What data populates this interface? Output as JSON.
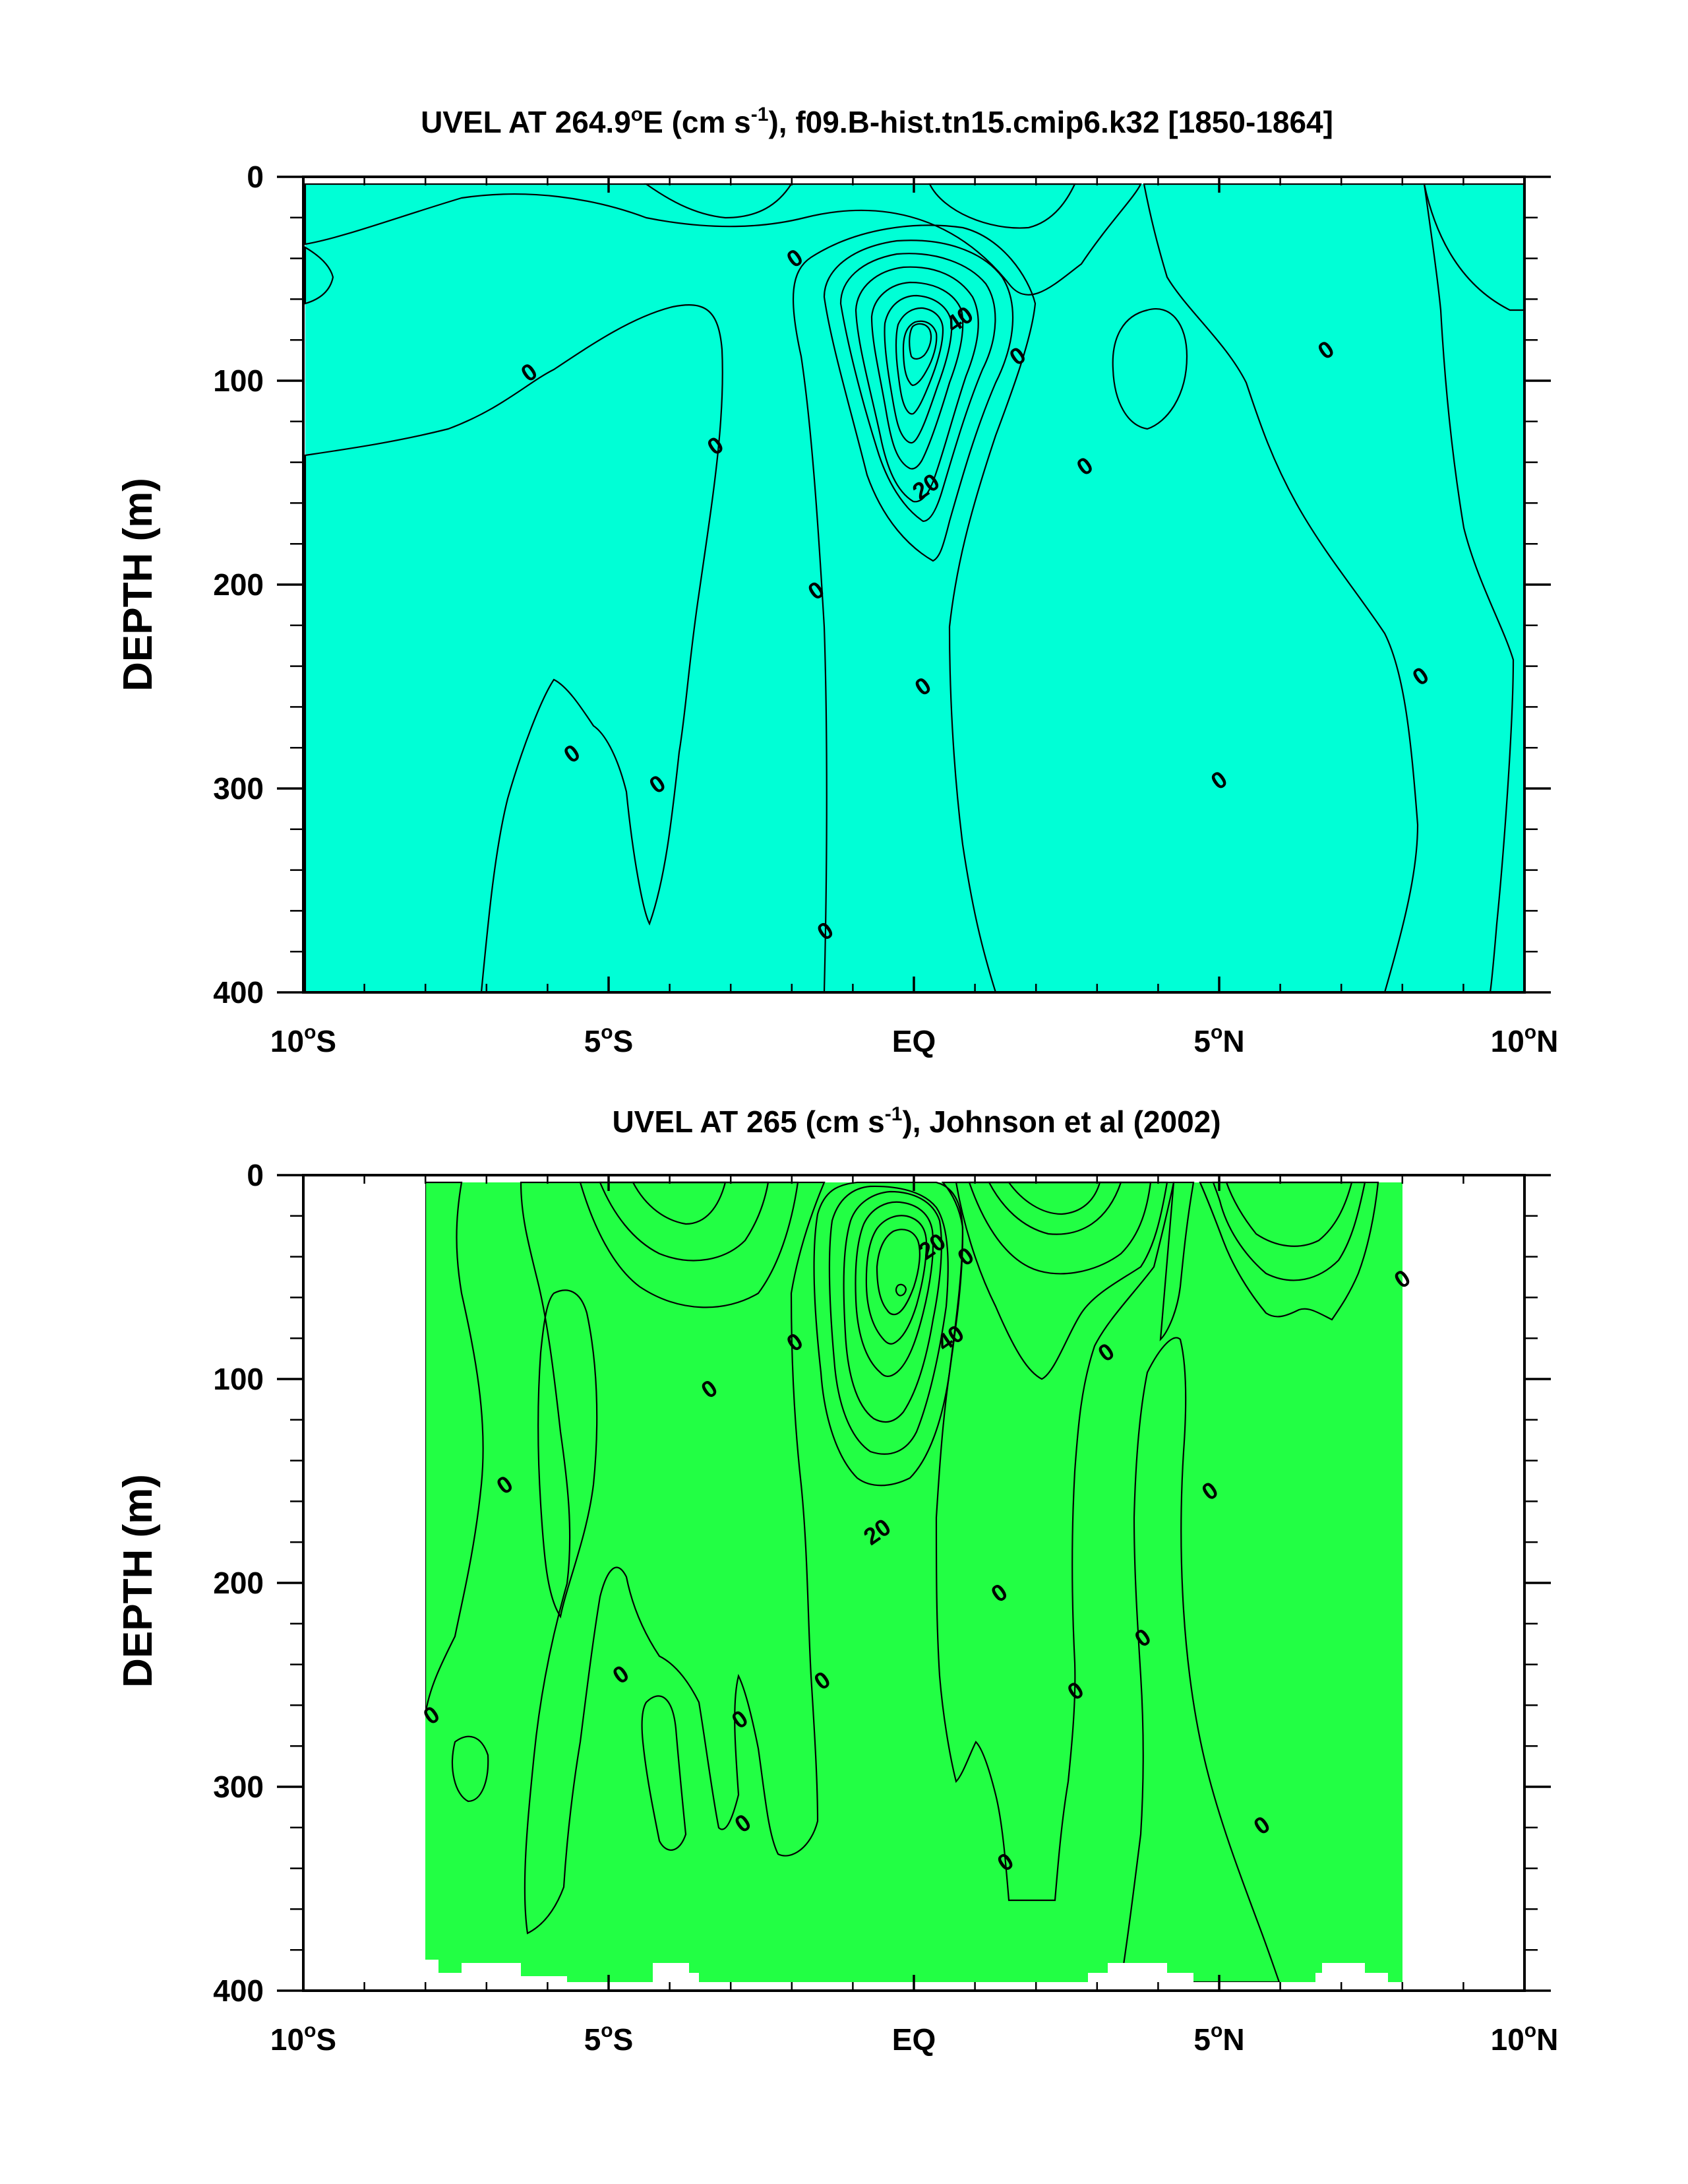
{
  "palette": {
    "m30": "#0095ff",
    "m20": "#00b8ff",
    "m10": "#3fdcff",
    "m5": "#00ffff",
    "p0": "#00ffd6",
    "p5": "#22ff44",
    "p10": "#5fff00",
    "p15": "#a5ff00",
    "p20": "#ffff00",
    "p25": "#ffe52e",
    "p30": "#ffc53a",
    "p35": "#ffa035",
    "p40": "#ff7a1a",
    "p50": "#ff4a10"
  },
  "chart_data": [
    {
      "type": "contour",
      "title_main": "UVEL AT 264.9",
      "title_deg": "o",
      "title_mid": "E (cm s",
      "title_sup": "-1",
      "title_end": "), f09.B-hist.tn15.cmip6.k32 [1850-1864]",
      "ylabel": "DEPTH (m)",
      "xlim": [
        -10,
        10
      ],
      "ylim": [
        0,
        400
      ],
      "y_reversed": true,
      "x_ticks": [
        {
          "value": -10,
          "num": "10",
          "deg": "o",
          "hemi": "S"
        },
        {
          "value": -5,
          "num": "5",
          "deg": "o",
          "hemi": "S"
        },
        {
          "value": 0,
          "num": "EQ",
          "deg": "",
          "hemi": ""
        },
        {
          "value": 5,
          "num": "5",
          "deg": "o",
          "hemi": "N"
        },
        {
          "value": 10,
          "num": "10",
          "deg": "o",
          "hemi": "N"
        }
      ],
      "y_ticks": [
        "0",
        "100",
        "200",
        "300",
        "400"
      ],
      "data_extent": {
        "x": [
          -10,
          10
        ],
        "y": [
          4,
          400
        ]
      },
      "contour_labels": [
        {
          "text": "0",
          "x": -1.95,
          "y": 40
        },
        {
          "text": "0",
          "x": -6.3,
          "y": 96
        },
        {
          "text": "0",
          "x": -3.25,
          "y": 132
        },
        {
          "text": "0",
          "x": -1.6,
          "y": 203
        },
        {
          "text": "0",
          "x": 1.7,
          "y": 88
        },
        {
          "text": "0",
          "x": 2.8,
          "y": 142
        },
        {
          "text": "0",
          "x": 0.15,
          "y": 250
        },
        {
          "text": "0",
          "x": 6.75,
          "y": 85
        },
        {
          "text": "0",
          "x": 8.3,
          "y": 245
        },
        {
          "text": "0",
          "x": 5.0,
          "y": 296
        },
        {
          "text": "0",
          "x": -5.6,
          "y": 283
        },
        {
          "text": "0",
          "x": -4.2,
          "y": 298
        },
        {
          "text": "0",
          "x": -1.45,
          "y": 370
        },
        {
          "text": "40",
          "x": 0.75,
          "y": 70
        },
        {
          "text": "20",
          "x": 0.2,
          "y": 152
        }
      ],
      "level_interval": 5,
      "units": "cm s-1"
    },
    {
      "type": "contour",
      "title_main": "UVEL AT 265 (cm s",
      "title_deg": "",
      "title_mid": "",
      "title_sup": "-1",
      "title_end": "), Johnson et al (2002)",
      "ylabel": "DEPTH (m)",
      "xlim": [
        -10,
        10
      ],
      "ylim": [
        0,
        400
      ],
      "y_reversed": true,
      "x_ticks": [
        {
          "value": -10,
          "num": "10",
          "deg": "o",
          "hemi": "S"
        },
        {
          "value": -5,
          "num": "5",
          "deg": "o",
          "hemi": "S"
        },
        {
          "value": 0,
          "num": "EQ",
          "deg": "",
          "hemi": ""
        },
        {
          "value": 5,
          "num": "5",
          "deg": "o",
          "hemi": "N"
        },
        {
          "value": 10,
          "num": "10",
          "deg": "o",
          "hemi": "N"
        }
      ],
      "y_ticks": [
        "0",
        "100",
        "200",
        "300",
        "400"
      ],
      "data_extent": {
        "x": [
          -8,
          8
        ],
        "y": [
          5,
          385
        ]
      },
      "contour_labels": [
        {
          "text": "0",
          "x": 0.85,
          "y": 40
        },
        {
          "text": "20",
          "x": 0.3,
          "y": 35
        },
        {
          "text": "40",
          "x": 0.6,
          "y": 80
        },
        {
          "text": "20",
          "x": -0.6,
          "y": 175
        },
        {
          "text": "0",
          "x": -1.95,
          "y": 82
        },
        {
          "text": "0",
          "x": -3.35,
          "y": 105
        },
        {
          "text": "0",
          "x": -6.7,
          "y": 152
        },
        {
          "text": "0",
          "x": -7.9,
          "y": 265
        },
        {
          "text": "0",
          "x": -4.8,
          "y": 245
        },
        {
          "text": "0",
          "x": -2.85,
          "y": 267
        },
        {
          "text": "0",
          "x": -1.5,
          "y": 248
        },
        {
          "text": "0",
          "x": -2.8,
          "y": 318
        },
        {
          "text": "0",
          "x": 1.4,
          "y": 205
        },
        {
          "text": "0",
          "x": 3.15,
          "y": 87
        },
        {
          "text": "0",
          "x": 4.85,
          "y": 155
        },
        {
          "text": "0",
          "x": 3.75,
          "y": 227
        },
        {
          "text": "0",
          "x": 2.65,
          "y": 253
        },
        {
          "text": "0",
          "x": 1.5,
          "y": 337
        },
        {
          "text": "0",
          "x": 5.7,
          "y": 319
        },
        {
          "text": "0",
          "x": 8.0,
          "y": 51
        }
      ],
      "level_interval": 5,
      "units": "cm s-1"
    }
  ]
}
